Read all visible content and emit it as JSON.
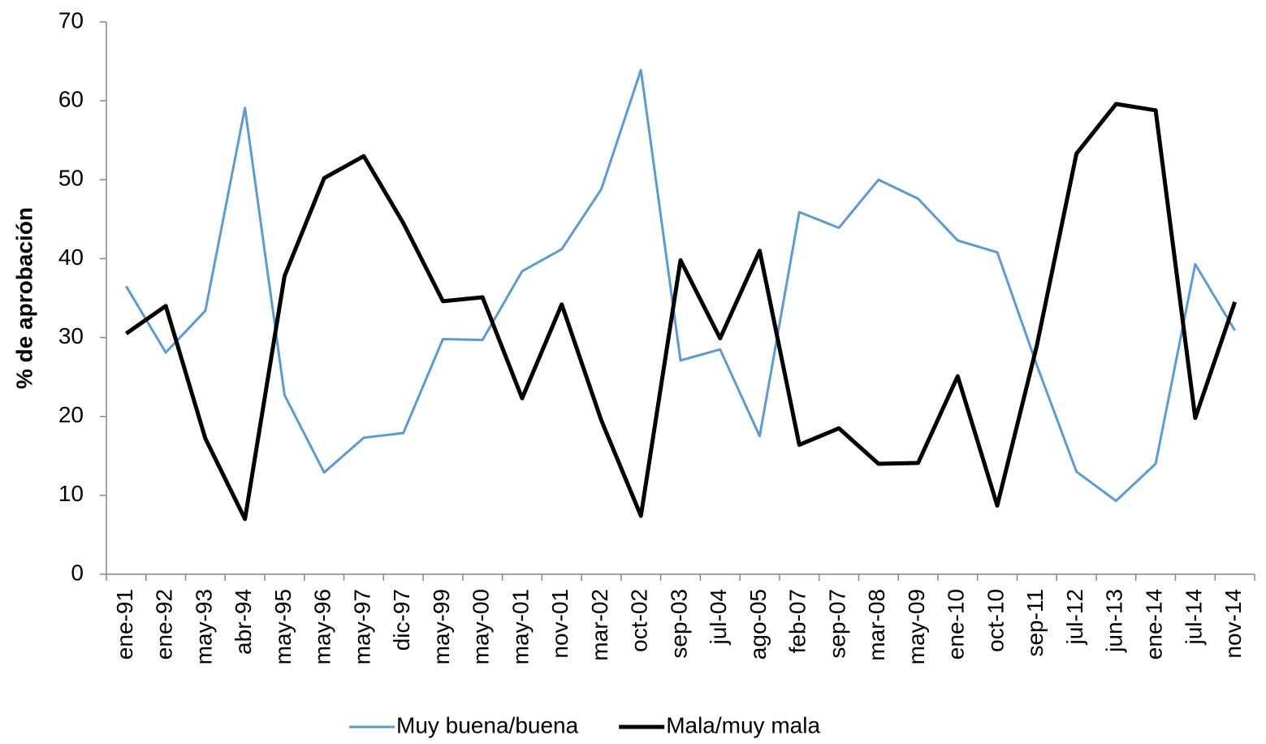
{
  "chart_data": {
    "type": "line",
    "y_label": "% de aprobación",
    "categories": [
      "ene-91",
      "ene-92",
      "may-93",
      "abr-94",
      "may-95",
      "may-96",
      "may-97",
      "dic-97",
      "may-99",
      "may-00",
      "may-01",
      "nov-01",
      "mar-02",
      "oct-02",
      "sep-03",
      "jul-04",
      "ago-05",
      "feb-07",
      "sep-07",
      "mar-08",
      "may-09",
      "ene-10",
      "oct-10",
      "sep-11",
      "jul-12",
      "jun-13",
      "ene-14",
      "jul-14",
      "nov-14"
    ],
    "series": [
      {
        "name": "Muy buena/buena",
        "color": "#5b9bd5",
        "width": 3,
        "values": [
          36.5,
          28.1,
          33.4,
          59.1,
          22.7,
          12.9,
          17.3,
          17.9,
          29.8,
          29.7,
          38.4,
          41.2,
          48.8,
          63.9,
          27.1,
          28.5,
          17.5,
          45.9,
          43.9,
          50.0,
          47.6,
          42.3,
          40.8,
          26.5,
          13.0,
          9.3,
          14.0,
          39.3,
          30.9
        ]
      },
      {
        "name": "Mala/muy mala",
        "color": "#000000",
        "width": 5,
        "values": [
          30.5,
          34.0,
          17.2,
          7.0,
          37.8,
          50.2,
          53.0,
          44.5,
          34.6,
          35.1,
          22.3,
          34.2,
          19.5,
          7.4,
          39.8,
          29.9,
          41.0,
          16.4,
          18.5,
          14.0,
          14.1,
          25.1,
          8.7,
          29.0,
          53.3,
          59.6,
          58.8,
          19.8,
          34.5
        ]
      }
    ],
    "ylim": [
      0,
      70
    ],
    "yticks": [
      0,
      10,
      20,
      30,
      40,
      50,
      60,
      70
    ],
    "grid": false,
    "legend": "bottom"
  }
}
